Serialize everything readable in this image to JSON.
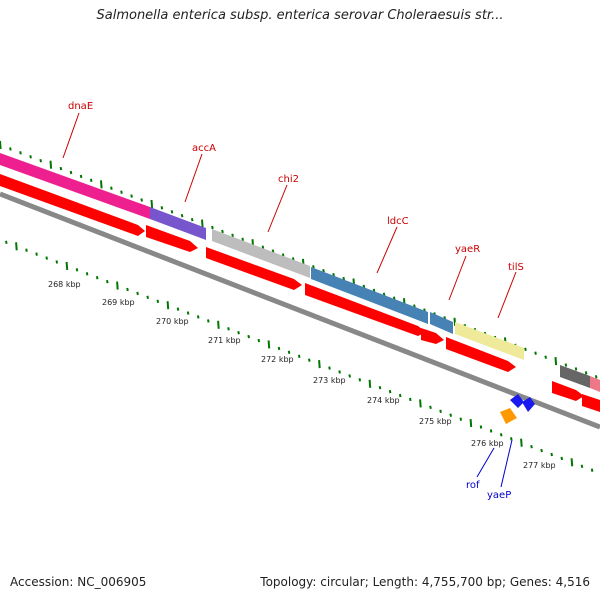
{
  "title": "Salmonella enterica subsp. enterica serovar Choleraesuis str...",
  "footer": {
    "accession_label": "Accession:",
    "accession": "NC_006905",
    "topology_label": "Topology:",
    "topology": "circular",
    "length_label": "Length:",
    "length": "4,755,700 bp",
    "genes_label": "Genes:",
    "genes": "4,516"
  },
  "colors": {
    "backbone": "#888888",
    "cds": "#ff0000",
    "label_upper": "#cc0000",
    "label_lower": "#0000cc",
    "tick": "#007700"
  },
  "scale_ticks": [
    {
      "label": "268 kbp",
      "kbp": 268
    },
    {
      "label": "269 kbp",
      "kbp": 269
    },
    {
      "label": "270 kbp",
      "kbp": 270
    },
    {
      "label": "271 kbp",
      "kbp": 271
    },
    {
      "label": "272 kbp",
      "kbp": 272
    },
    {
      "label": "273 kbp",
      "kbp": 273
    },
    {
      "label": "274 kbp",
      "kbp": 274
    },
    {
      "label": "275 kbp",
      "kbp": 275
    },
    {
      "label": "276 kbp",
      "kbp": 276
    },
    {
      "label": "277 kbp",
      "kbp": 277
    }
  ],
  "genes_upper": [
    {
      "name": "dnaE",
      "color": "#ee1f8f"
    },
    {
      "name": "accA",
      "color": "#7755cc"
    },
    {
      "name": "chi2",
      "color": "#bdbdbd"
    },
    {
      "name": "ldcC",
      "color": "#4682b4"
    },
    {
      "name": "yaeR",
      "color": "#4682b4"
    },
    {
      "name": "tilS",
      "color": "#eeea99"
    }
  ],
  "genes_lower": [
    {
      "name": "rof",
      "color": "#1a1aee"
    },
    {
      "name": "yaeP",
      "color": "#ff9900"
    }
  ]
}
